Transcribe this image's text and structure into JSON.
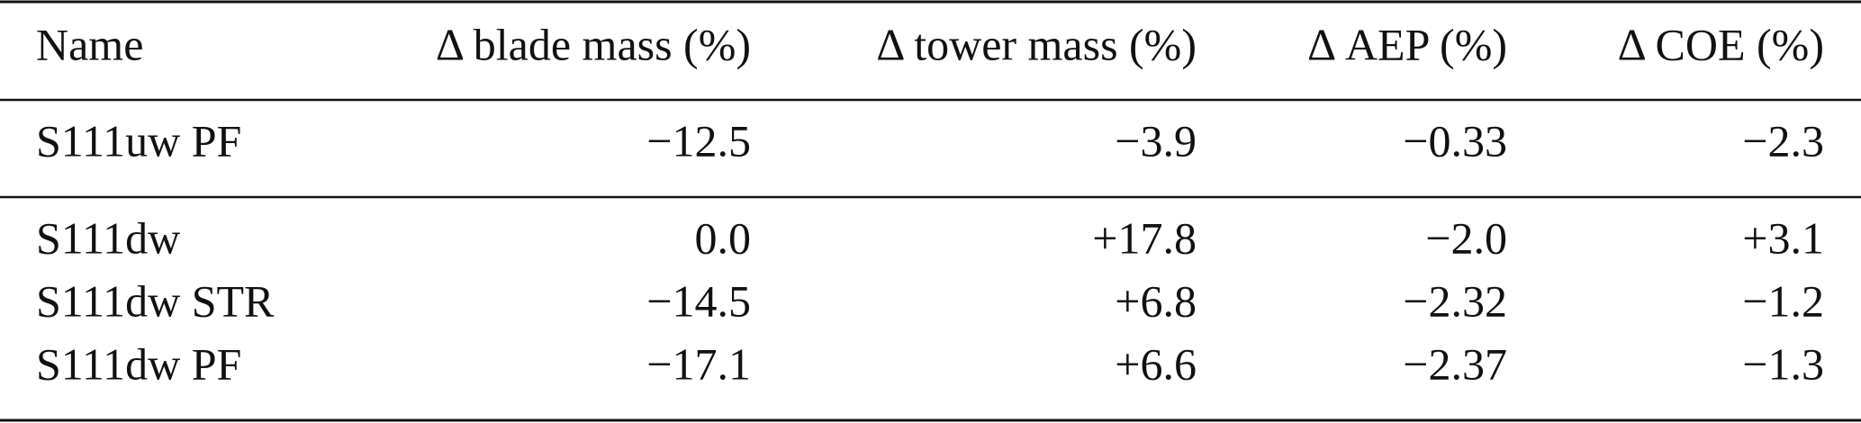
{
  "table": {
    "header": [
      "Name",
      "Δ blade mass (%)",
      "Δ tower mass (%)",
      "Δ AEP (%)",
      "Δ COE (%)"
    ],
    "rows": [
      [
        "S111uw PF",
        "−12.5",
        "−3.9",
        "−0.33",
        "−2.3"
      ],
      [
        "S111dw",
        "0.0",
        "+17.8",
        "−2.0",
        "+3.1"
      ],
      [
        "S111dw STR",
        "−14.5",
        "+6.8",
        "−2.32",
        "−1.2"
      ],
      [
        "S111dw PF",
        "−17.1",
        "+6.6",
        "−2.37",
        "−1.3"
      ]
    ]
  }
}
